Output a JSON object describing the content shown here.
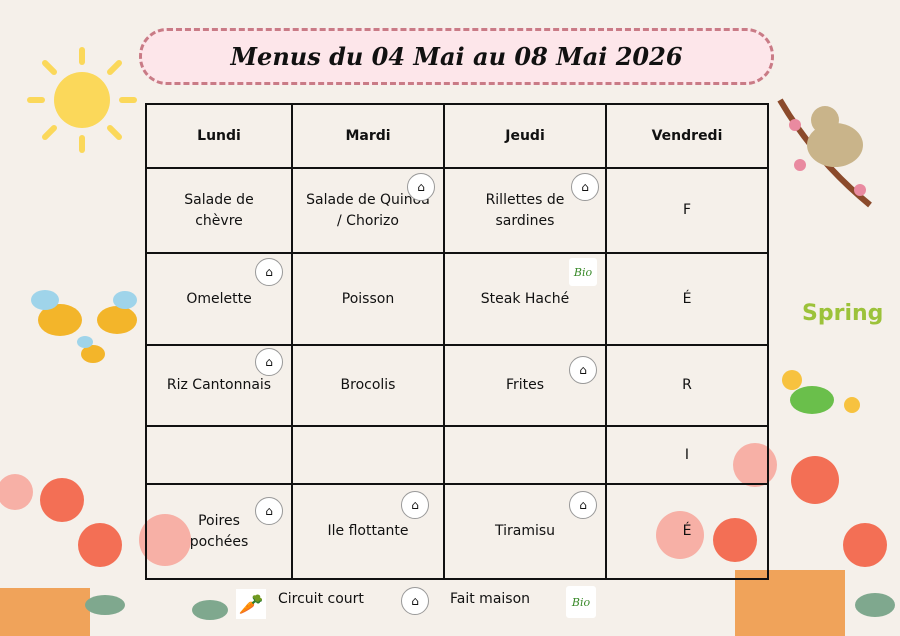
{
  "title": "Menus du 04 Mai au 08 Mai 2026",
  "days": [
    "Lundi",
    "Mardi",
    "Jeudi",
    "Vendredi"
  ],
  "rows": [
    [
      "Salade de chèvre",
      "Salade de Quinoa / Chorizo",
      "Rillettes de sardines",
      "F"
    ],
    [
      "Omelette",
      "Poisson",
      "Steak Haché",
      "É"
    ],
    [
      "Riz Cantonnais",
      "Brocolis",
      "Frites",
      "R"
    ],
    [
      "",
      "",
      "",
      "I"
    ],
    [
      "Poires pochées",
      "Ile flottante",
      "Tiramisu",
      "É"
    ]
  ],
  "legend": {
    "circuit_court": "Circuit court",
    "fait_maison": "Fait maison",
    "bio": "Bio"
  },
  "badge_fait_maison": "⌂",
  "colors": {
    "title_bg": "#fde6ea",
    "title_border": "#c97b86",
    "background": "#f5f0ea"
  }
}
